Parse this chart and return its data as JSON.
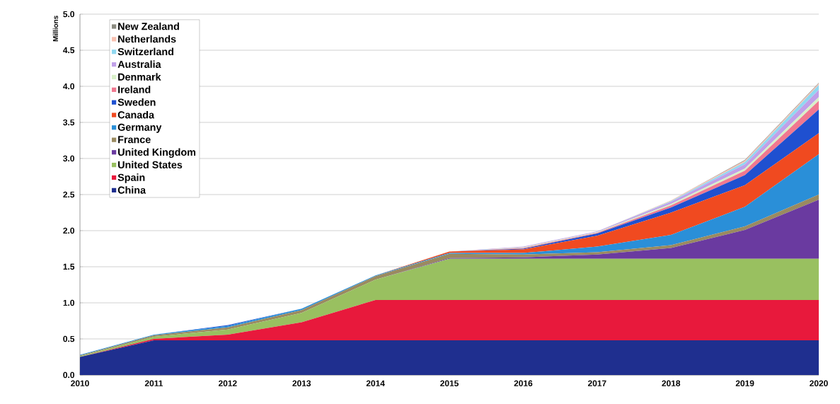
{
  "chart_data": {
    "type": "area",
    "stacked": true,
    "ylabel": "Millions",
    "x": [
      2010,
      2011,
      2012,
      2013,
      2014,
      2015,
      2016,
      2017,
      2018,
      2019,
      2020
    ],
    "xlim": [
      2010,
      2020
    ],
    "xticks": [
      2010,
      2011,
      2012,
      2013,
      2014,
      2015,
      2016,
      2017,
      2018,
      2019,
      2020
    ],
    "ylim": [
      0,
      5
    ],
    "yticks": [
      {
        "value": 0,
        "label": "0.0"
      },
      {
        "value": 0.5,
        "label": "0.5"
      },
      {
        "value": 1,
        "label": "1.0"
      },
      {
        "value": 1.5,
        "label": "1.5"
      },
      {
        "value": 2,
        "label": "2.0"
      },
      {
        "value": 2.5,
        "label": "2.5"
      },
      {
        "value": 3,
        "label": "3.0"
      },
      {
        "value": 3.5,
        "label": "3.5"
      },
      {
        "value": 4,
        "label": "4.0"
      },
      {
        "value": 4.5,
        "label": "4.5"
      },
      {
        "value": 5,
        "label": "5.0"
      }
    ],
    "grid": "y",
    "legend": "top left",
    "series": [
      {
        "name": "China",
        "color": "#1f2f8f",
        "values": [
          0.25,
          0.48,
          0.48,
          0.48,
          0.48,
          0.48,
          0.48,
          0.48,
          0.48,
          0.48,
          0.48
        ]
      },
      {
        "name": "Spain",
        "color": "#e8193c",
        "values": [
          0,
          0.02,
          0.08,
          0.25,
          0.56,
          0.56,
          0.56,
          0.56,
          0.56,
          0.56,
          0.56
        ]
      },
      {
        "name": "United States",
        "color": "#99c060",
        "values": [
          0.01,
          0.03,
          0.07,
          0.13,
          0.28,
          0.57,
          0.57,
          0.57,
          0.57,
          0.57,
          0.57
        ]
      },
      {
        "name": "United Kingdom",
        "color": "#6a3aa0",
        "values": [
          0,
          0,
          0,
          0,
          0,
          0.01,
          0.02,
          0.06,
          0.15,
          0.4,
          0.82
        ]
      },
      {
        "name": "France",
        "color": "#9a8a60",
        "values": [
          0.01,
          0.02,
          0.03,
          0.04,
          0.05,
          0.06,
          0.04,
          0.03,
          0.04,
          0.05,
          0.07
        ]
      },
      {
        "name": "Germany",
        "color": "#2a8fd8",
        "values": [
          0.01,
          0.01,
          0.02,
          0.02,
          0.01,
          0.01,
          0.02,
          0.08,
          0.14,
          0.27,
          0.56
        ]
      },
      {
        "name": "Canada",
        "color": "#f04a20",
        "values": [
          0,
          0,
          0,
          0,
          0,
          0.02,
          0.05,
          0.15,
          0.31,
          0.3,
          0.29
        ]
      },
      {
        "name": "Sweden",
        "color": "#1f50d0",
        "values": [
          0,
          0,
          0.01,
          0,
          0,
          0,
          0.01,
          0.03,
          0.07,
          0.14,
          0.33
        ]
      },
      {
        "name": "Ireland",
        "color": "#f07890",
        "values": [
          0,
          0,
          0,
          0,
          0,
          0,
          0.01,
          0.01,
          0.03,
          0.06,
          0.12
        ]
      },
      {
        "name": "Denmark",
        "color": "#d8f0c8",
        "values": [
          0,
          0,
          0,
          0,
          0,
          0,
          0.01,
          0.01,
          0.02,
          0.03,
          0.05
        ]
      },
      {
        "name": "Australia",
        "color": "#c0a0e8",
        "values": [
          0,
          0,
          0,
          0,
          0,
          0,
          0.01,
          0.01,
          0.03,
          0.06,
          0.1
        ]
      },
      {
        "name": "Switzerland",
        "color": "#90d8f0",
        "values": [
          0,
          0,
          0,
          0,
          0,
          0,
          0,
          0,
          0.01,
          0.03,
          0.07
        ]
      },
      {
        "name": "Netherlands",
        "color": "#f8c0b0",
        "values": [
          0,
          0,
          0,
          0,
          0,
          0,
          0,
          0,
          0.01,
          0.02,
          0.02
        ]
      },
      {
        "name": "New Zealand",
        "color": "#8a8a80",
        "values": [
          0,
          0,
          0,
          0,
          0,
          0,
          0,
          0,
          0,
          0.01,
          0.01
        ]
      }
    ]
  }
}
